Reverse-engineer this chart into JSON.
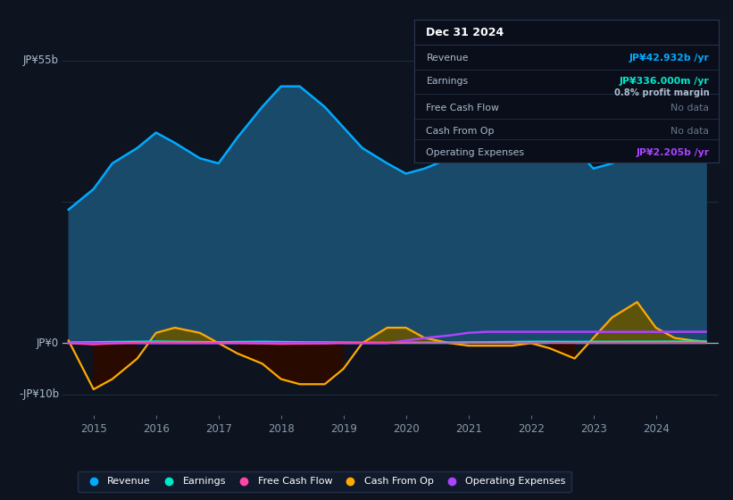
{
  "bg_color": "#0d1420",
  "plot_bg_color": "#0d1420",
  "years": [
    2014.6,
    2015.0,
    2015.3,
    2015.7,
    2016.0,
    2016.3,
    2016.7,
    2017.0,
    2017.3,
    2017.7,
    2018.0,
    2018.3,
    2018.7,
    2019.0,
    2019.3,
    2019.7,
    2020.0,
    2020.3,
    2020.7,
    2021.0,
    2021.3,
    2021.7,
    2022.0,
    2022.3,
    2022.7,
    2023.0,
    2023.3,
    2023.7,
    2024.0,
    2024.3,
    2024.6,
    2024.8
  ],
  "revenue": [
    26,
    30,
    35,
    38,
    41,
    39,
    36,
    35,
    40,
    46,
    50,
    50,
    46,
    42,
    38,
    35,
    33,
    34,
    36,
    37,
    40,
    46,
    49,
    44,
    38,
    34,
    35,
    37,
    38,
    40,
    42,
    42.932
  ],
  "earnings": [
    0.15,
    0.2,
    0.25,
    0.3,
    0.35,
    0.3,
    0.25,
    0.2,
    0.25,
    0.3,
    0.25,
    0.2,
    0.18,
    0.15,
    0.12,
    0.1,
    0.1,
    0.12,
    0.15,
    0.18,
    0.2,
    0.25,
    0.3,
    0.3,
    0.28,
    0.3,
    0.3,
    0.32,
    0.32,
    0.33,
    0.336,
    0.336
  ],
  "cash_from_op": [
    0.5,
    -9,
    -7,
    -3,
    2,
    3,
    2,
    0,
    -2,
    -4,
    -7,
    -8,
    -8,
    -5,
    0,
    3,
    3,
    1,
    0,
    -0.5,
    -0.5,
    -0.5,
    0,
    -1,
    -3,
    1,
    5,
    8,
    3,
    1,
    0.5,
    0.3
  ],
  "operating_expenses": [
    0,
    0,
    0,
    0,
    0,
    0,
    0,
    0,
    0,
    0,
    0,
    0,
    0,
    0,
    0,
    0,
    0.5,
    1.0,
    1.5,
    2.0,
    2.2,
    2.2,
    2.2,
    2.2,
    2.2,
    2.2,
    2.2,
    2.2,
    2.2,
    2.2,
    2.205,
    2.205
  ],
  "free_cash_flow": [
    0.0,
    -0.3,
    -0.1,
    0.1,
    0.2,
    0.15,
    0.1,
    0.05,
    0.0,
    -0.1,
    -0.2,
    -0.15,
    -0.1,
    0.05,
    0.1,
    0.1,
    0.05,
    0.02,
    0.0,
    0.0,
    0.0,
    0.0,
    0.0,
    0.0,
    0.0,
    0.0,
    0.0,
    0.0,
    0.0,
    0.0,
    0.0,
    0.0
  ],
  "ylim_top": 60,
  "ylim_bottom": -14,
  "xlim_left": 2014.5,
  "xlim_right": 2025.0,
  "y_label_55": "JP¥55b",
  "y_label_0": "JP¥0",
  "y_label_n10": "-JP¥10b",
  "x_ticks": [
    2015,
    2016,
    2017,
    2018,
    2019,
    2020,
    2021,
    2022,
    2023,
    2024
  ],
  "revenue_color": "#00aaff",
  "earnings_color": "#00e8cc",
  "cash_from_op_color": "#ffaa00",
  "operating_expenses_color": "#aa44ff",
  "free_cash_flow_color": "#ff44aa",
  "revenue_fill_color": "#1a4a6a",
  "cash_pos_fill": "#665500",
  "cash_neg_fill": "#2a0a00",
  "tooltip_bg": "#0a0e1a",
  "tooltip_border": "#2a3550",
  "legend_bg": "#131c2e",
  "legend_border": "#2a3550",
  "grid_color": "#1e2d40",
  "zero_line_color": "#ccddee",
  "tick_color": "#8899aa",
  "label_color": "#aabbcc",
  "white": "#ffffff"
}
